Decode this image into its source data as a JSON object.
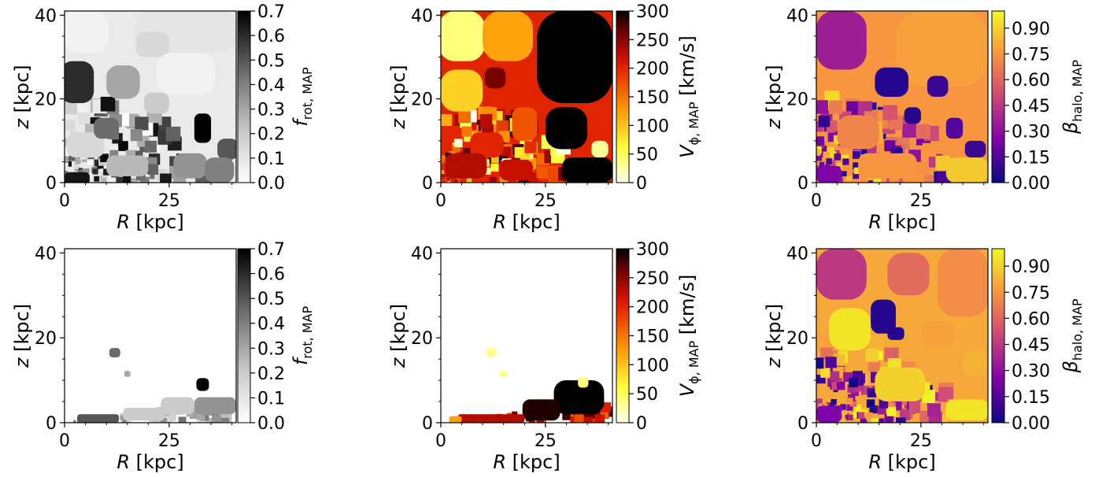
{
  "figure": {
    "description_units": "spatial maps in the meridional plane, R and z in kpc"
  },
  "chart_data": [
    {
      "type": "heatmap",
      "panel": "top-left",
      "xlabel": "R [kpc]",
      "ylabel": "z [kpc]",
      "xlim": [
        0,
        41
      ],
      "ylim": [
        0,
        41
      ],
      "xticks": [
        "0",
        "25"
      ],
      "yticks": [
        "0",
        "20",
        "40"
      ],
      "colorbar": {
        "label_main": "f",
        "label_sub": "rot, MAP",
        "italic_main": true,
        "colormap": "greys",
        "vmin": 0.0,
        "vmax": 0.7,
        "ticks": [
          "0.0",
          "0.1",
          "0.2",
          "0.3",
          "0.4",
          "0.5",
          "0.6",
          "0.7"
        ]
      },
      "cells": [
        {
          "R": 29,
          "z": 36,
          "w": 24,
          "h": 10,
          "v": 0.1
        },
        {
          "R": 5,
          "z": 36,
          "w": 11,
          "h": 10,
          "v": 0.05
        },
        {
          "R": 3,
          "z": 24,
          "w": 8,
          "h": 10,
          "v": 0.6
        },
        {
          "R": 21,
          "z": 33,
          "w": 8,
          "h": 6,
          "v": 0.15
        },
        {
          "R": 29,
          "z": 26,
          "w": 14,
          "h": 10,
          "v": 0.05
        },
        {
          "R": 14,
          "z": 24,
          "w": 8,
          "h": 8,
          "v": 0.3
        },
        {
          "R": 22,
          "z": 19,
          "w": 6,
          "h": 5,
          "v": 0.2
        },
        {
          "R": 33,
          "z": 13,
          "w": 4,
          "h": 7,
          "v": 0.7
        },
        {
          "R": 39,
          "z": 8,
          "w": 5,
          "h": 5,
          "v": 0.5
        },
        {
          "R": 30,
          "z": 4,
          "w": 8,
          "h": 6,
          "v": 0.35
        },
        {
          "R": 37,
          "z": 3,
          "w": 7,
          "h": 6,
          "v": 0.4
        },
        {
          "R": 15,
          "z": 4,
          "w": 10,
          "h": 5,
          "v": 0.25
        },
        {
          "R": 5,
          "z": 9,
          "w": 9,
          "h": 6,
          "v": 0.15
        },
        {
          "R": 10,
          "z": 13,
          "w": 6,
          "h": 5,
          "v": 0.45
        },
        {
          "R": 3,
          "z": 1,
          "w": 6,
          "h": 3,
          "v": 0.65
        }
      ]
    },
    {
      "type": "heatmap",
      "panel": "top-middle",
      "xlabel": "R [kpc]",
      "ylabel": "z [kpc]",
      "xlim": [
        0,
        41
      ],
      "ylim": [
        0,
        41
      ],
      "xticks": [
        "0",
        "25"
      ],
      "yticks": [
        "0",
        "20",
        "40"
      ],
      "colorbar": {
        "label_main": "V",
        "label_sub": "ϕ, MAP",
        "label_unit": "[km/s]",
        "italic_main": true,
        "colormap": "hot_r",
        "vmin": 0,
        "vmax": 300,
        "ticks": [
          "0",
          "50",
          "100",
          "150",
          "200",
          "250",
          "300"
        ]
      },
      "cells": [
        {
          "R": 5,
          "z": 35,
          "w": 11,
          "h": 12,
          "v": 40
        },
        {
          "R": 16,
          "z": 35,
          "w": 12,
          "h": 12,
          "v": 120
        },
        {
          "R": 32,
          "z": 30,
          "w": 18,
          "h": 22,
          "v": 300
        },
        {
          "R": 5,
          "z": 22,
          "w": 10,
          "h": 10,
          "v": 90
        },
        {
          "R": 13,
          "z": 25,
          "w": 5,
          "h": 5,
          "v": 260
        },
        {
          "R": 20,
          "z": 23,
          "w": 5,
          "h": 5,
          "v": 200
        },
        {
          "R": 30,
          "z": 13,
          "w": 10,
          "h": 10,
          "v": 300
        },
        {
          "R": 38,
          "z": 8,
          "w": 4,
          "h": 4,
          "v": 30
        },
        {
          "R": 35,
          "z": 3,
          "w": 12,
          "h": 6,
          "v": 300
        },
        {
          "R": 20,
          "z": 14,
          "w": 6,
          "h": 8,
          "v": 170
        },
        {
          "R": 11,
          "z": 9,
          "w": 8,
          "h": 6,
          "v": 200
        },
        {
          "R": 6,
          "z": 4,
          "w": 10,
          "h": 6,
          "v": 230
        },
        {
          "R": 18,
          "z": 3,
          "w": 8,
          "h": 5,
          "v": 220
        }
      ]
    },
    {
      "type": "heatmap",
      "panel": "top-right",
      "xlabel": "R [kpc]",
      "ylabel": "z [kpc]",
      "xlim": [
        0,
        41
      ],
      "ylim": [
        0,
        41
      ],
      "xticks": [
        "0",
        "25"
      ],
      "yticks": [
        "0",
        "20",
        "40"
      ],
      "colorbar": {
        "label_main": "β",
        "label_sub": "halo, MAP",
        "italic_main": true,
        "colormap": "plasma",
        "vmin": 0.0,
        "vmax": 1.0,
        "ticks": [
          "0.00",
          "0.15",
          "0.30",
          "0.45",
          "0.60",
          "0.75",
          "0.90"
        ]
      },
      "cells": [
        {
          "R": 6,
          "z": 34,
          "w": 12,
          "h": 14,
          "v": 0.35
        },
        {
          "R": 30,
          "z": 32,
          "w": 22,
          "h": 18,
          "v": 0.78
        },
        {
          "R": 18,
          "z": 24,
          "w": 8,
          "h": 7,
          "v": 0.05
        },
        {
          "R": 29,
          "z": 23,
          "w": 5,
          "h": 5,
          "v": 0.1
        },
        {
          "R": 33,
          "z": 13,
          "w": 4,
          "h": 5,
          "v": 0.15
        },
        {
          "R": 38,
          "z": 8,
          "w": 5,
          "h": 4,
          "v": 0.1
        },
        {
          "R": 23,
          "z": 16,
          "w": 4,
          "h": 4,
          "v": 0.05
        },
        {
          "R": 10,
          "z": 12,
          "w": 10,
          "h": 8,
          "v": 0.7
        },
        {
          "R": 3,
          "z": 2,
          "w": 6,
          "h": 4,
          "v": 0.25
        },
        {
          "R": 36,
          "z": 3,
          "w": 10,
          "h": 6,
          "v": 0.88
        },
        {
          "R": 17,
          "z": 4,
          "w": 14,
          "h": 6,
          "v": 0.75
        }
      ]
    },
    {
      "type": "heatmap",
      "panel": "bottom-left",
      "xlabel": "R [kpc]",
      "ylabel": "z [kpc]",
      "xlim": [
        0,
        41
      ],
      "ylim": [
        0,
        41
      ],
      "xticks": [
        "0",
        "25"
      ],
      "yticks": [
        "0",
        "20",
        "40"
      ],
      "colorbar": {
        "label_main": "f",
        "label_sub": "rot, MAP",
        "italic_main": true,
        "colormap": "greys",
        "vmin": 0.0,
        "vmax": 0.7,
        "ticks": [
          "0.0",
          "0.1",
          "0.2",
          "0.3",
          "0.4",
          "0.5",
          "0.6",
          "0.7"
        ]
      },
      "cells": [
        {
          "R": 12,
          "z": 16.5,
          "w": 2.6,
          "h": 2.2,
          "v": 0.45
        },
        {
          "R": 15,
          "z": 11.5,
          "w": 1.5,
          "h": 1.4,
          "v": 0.3
        },
        {
          "R": 33,
          "z": 9,
          "w": 3,
          "h": 3,
          "v": 0.7
        },
        {
          "R": 36,
          "z": 4,
          "w": 10,
          "h": 4,
          "v": 0.35
        },
        {
          "R": 27,
          "z": 4,
          "w": 8,
          "h": 4,
          "v": 0.2
        },
        {
          "R": 19,
          "z": 2,
          "w": 10,
          "h": 3,
          "v": 0.2
        },
        {
          "R": 8,
          "z": 1,
          "w": 10,
          "h": 2,
          "v": 0.5
        }
      ]
    },
    {
      "type": "heatmap",
      "panel": "bottom-middle",
      "xlabel": "R [kpc]",
      "ylabel": "z [kpc]",
      "xlim": [
        0,
        41
      ],
      "ylim": [
        0,
        41
      ],
      "xticks": [
        "0",
        "25"
      ],
      "yticks": [
        "0",
        "20",
        "40"
      ],
      "colorbar": {
        "label_main": "V",
        "label_sub": "ϕ, MAP",
        "label_unit": "[km/s]",
        "italic_main": true,
        "colormap": "hot_r",
        "vmin": 0,
        "vmax": 300,
        "ticks": [
          "0",
          "50",
          "100",
          "150",
          "200",
          "250",
          "300"
        ]
      },
      "cells": [
        {
          "R": 12,
          "z": 16.5,
          "w": 2.6,
          "h": 2.2,
          "v": 30
        },
        {
          "R": 15,
          "z": 11.5,
          "w": 1.5,
          "h": 1.4,
          "v": 40
        },
        {
          "R": 33,
          "z": 6,
          "w": 12,
          "h": 8,
          "v": 300
        },
        {
          "R": 34,
          "z": 9.5,
          "w": 2.5,
          "h": 2.5,
          "v": 40
        },
        {
          "R": 24,
          "z": 3,
          "w": 9,
          "h": 5,
          "v": 290
        },
        {
          "R": 12,
          "z": 1,
          "w": 16,
          "h": 2,
          "v": 230
        },
        {
          "R": 3.5,
          "z": 0.8,
          "w": 3,
          "h": 1.5,
          "v": 120
        }
      ]
    },
    {
      "type": "heatmap",
      "panel": "bottom-right",
      "xlabel": "R [kpc]",
      "ylabel": "z [kpc]",
      "xlim": [
        0,
        41
      ],
      "ylim": [
        0,
        41
      ],
      "xticks": [
        "0",
        "25"
      ],
      "yticks": [
        "0",
        "20",
        "40"
      ],
      "colorbar": {
        "label_main": "β",
        "label_sub": "halo, MAP",
        "italic_main": true,
        "colormap": "plasma",
        "vmin": 0.0,
        "vmax": 1.0,
        "ticks": [
          "0.00",
          "0.15",
          "0.30",
          "0.45",
          "0.60",
          "0.75",
          "0.90"
        ]
      },
      "cells": [
        {
          "R": 6,
          "z": 35,
          "w": 12,
          "h": 12,
          "v": 0.45
        },
        {
          "R": 22,
          "z": 35,
          "w": 10,
          "h": 10,
          "v": 0.62
        },
        {
          "R": 35,
          "z": 33,
          "w": 12,
          "h": 16,
          "v": 0.72
        },
        {
          "R": 16,
          "z": 25,
          "w": 6,
          "h": 8,
          "v": 0.05
        },
        {
          "R": 19,
          "z": 21,
          "w": 4,
          "h": 3,
          "v": 0.05
        },
        {
          "R": 8,
          "z": 22,
          "w": 10,
          "h": 10,
          "v": 0.95
        },
        {
          "R": 29,
          "z": 21,
          "w": 8,
          "h": 6,
          "v": 0.78
        },
        {
          "R": 38,
          "z": 14,
          "w": 6,
          "h": 6,
          "v": 0.82
        },
        {
          "R": 20,
          "z": 9,
          "w": 12,
          "h": 8,
          "v": 0.9
        },
        {
          "R": 36,
          "z": 3,
          "w": 10,
          "h": 5,
          "v": 0.95
        },
        {
          "R": 3,
          "z": 2,
          "w": 6,
          "h": 4,
          "v": 0.25
        }
      ]
    }
  ]
}
